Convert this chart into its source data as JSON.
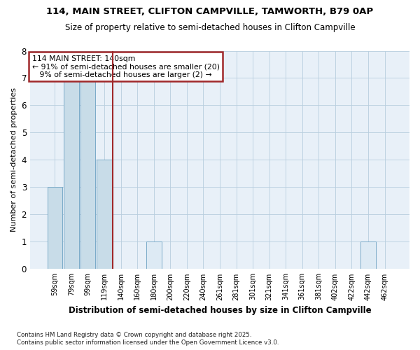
{
  "title": "114, MAIN STREET, CLIFTON CAMPVILLE, TAMWORTH, B79 0AP",
  "subtitle": "Size of property relative to semi-detached houses in Clifton Campville",
  "xlabel": "Distribution of semi-detached houses by size in Clifton Campville",
  "ylabel": "Number of semi-detached properties",
  "footnote1": "Contains HM Land Registry data © Crown copyright and database right 2025.",
  "footnote2": "Contains public sector information licensed under the Open Government Licence v3.0.",
  "categories": [
    "59sqm",
    "79sqm",
    "99sqm",
    "119sqm",
    "140sqm",
    "160sqm",
    "180sqm",
    "200sqm",
    "220sqm",
    "240sqm",
    "261sqm",
    "281sqm",
    "301sqm",
    "321sqm",
    "341sqm",
    "361sqm",
    "381sqm",
    "402sqm",
    "422sqm",
    "442sqm",
    "462sqm"
  ],
  "values": [
    3,
    7,
    7,
    4,
    0,
    0,
    1,
    0,
    0,
    0,
    0,
    0,
    0,
    0,
    0,
    0,
    0,
    0,
    0,
    1,
    0
  ],
  "highlight_index": 4,
  "highlight_color": "#a0282a",
  "bar_color_left": "#c8dce8",
  "bar_color_right": "#ddeaf4",
  "bar_edge_color": "#7aaac8",
  "ylim": [
    0,
    8
  ],
  "yticks": [
    0,
    1,
    2,
    3,
    4,
    5,
    6,
    7,
    8
  ],
  "annotation_title": "114 MAIN STREET: 140sqm",
  "annotation_line1": "← 91% of semi-detached houses are smaller (20)",
  "annotation_line2": "   9% of semi-detached houses are larger (2) →",
  "annotation_box_color": "#a0282a",
  "background_color": "#ffffff",
  "plot_bg_color": "#e8f0f8"
}
